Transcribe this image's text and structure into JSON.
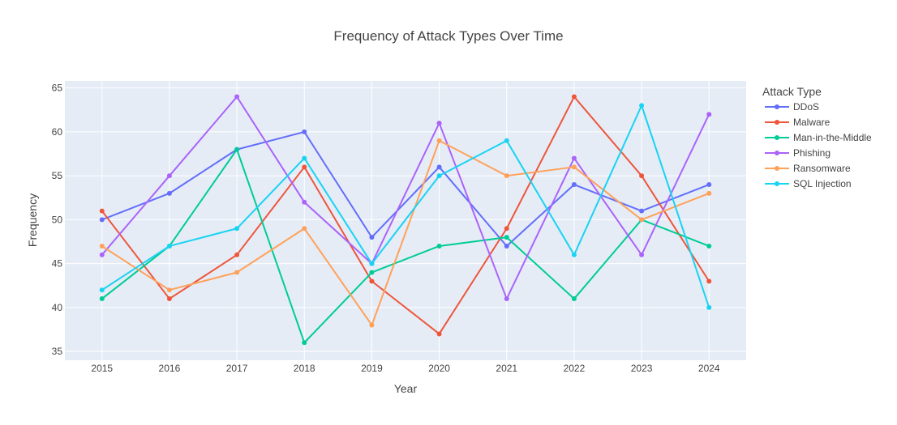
{
  "chart_data": {
    "type": "line",
    "title": "Frequency of Attack Types Over Time",
    "xlabel": "Year",
    "ylabel": "Frequency",
    "x": [
      2015,
      2016,
      2017,
      2018,
      2019,
      2020,
      2021,
      2022,
      2023,
      2024
    ],
    "ylim": [
      34,
      65.8
    ],
    "yticks": [
      35,
      40,
      45,
      50,
      55,
      60,
      65
    ],
    "grid": true,
    "legend_title": "Attack Type",
    "legend_position": "right",
    "series": [
      {
        "name": "DDoS",
        "color": "#636efa",
        "values": [
          50,
          53,
          58,
          60,
          48,
          56,
          47,
          54,
          51,
          54
        ]
      },
      {
        "name": "Malware",
        "color": "#EF553B",
        "values": [
          51,
          41,
          46,
          56,
          43,
          37,
          49,
          64,
          55,
          43
        ]
      },
      {
        "name": "Man-in-the-Middle",
        "color": "#00cc96",
        "values": [
          41,
          47,
          58,
          36,
          44,
          47,
          48,
          41,
          50,
          47
        ]
      },
      {
        "name": "Phishing",
        "color": "#ab63fa",
        "values": [
          46,
          55,
          64,
          52,
          45,
          61,
          41,
          57,
          46,
          62
        ]
      },
      {
        "name": "Ransomware",
        "color": "#FFA15A",
        "values": [
          47,
          42,
          44,
          49,
          38,
          59,
          55,
          56,
          50,
          53
        ]
      },
      {
        "name": "SQL Injection",
        "color": "#19d3f3",
        "values": [
          42,
          47,
          49,
          57,
          45,
          55,
          59,
          46,
          63,
          40
        ]
      }
    ]
  }
}
